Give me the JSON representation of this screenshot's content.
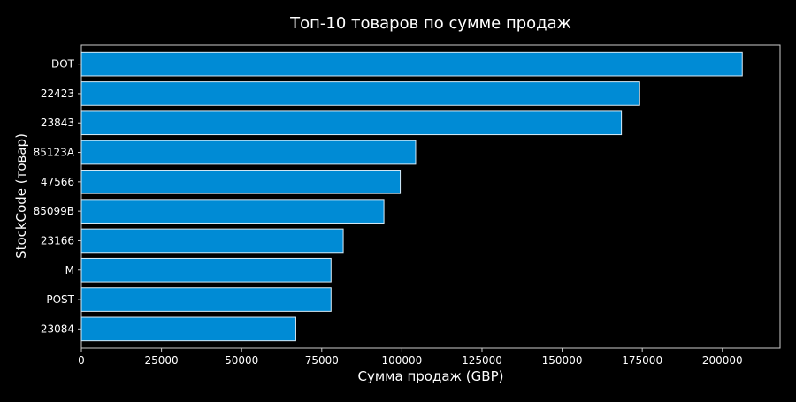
{
  "chart_data": {
    "type": "bar",
    "orientation": "horizontal",
    "title": "Топ-10 товаров по сумме продаж",
    "xlabel": "Сумма продаж (GBP)",
    "ylabel": "StockCode (товар)",
    "categories": [
      "DOT",
      "22423",
      "23843",
      "85123A",
      "47566",
      "85099B",
      "23166",
      "M",
      "POST",
      "23084"
    ],
    "values": [
      206200,
      174200,
      168500,
      104300,
      99500,
      94400,
      81700,
      77900,
      77900,
      66900
    ],
    "xlim": [
      0,
      218000
    ],
    "xticks": [
      0,
      25000,
      50000,
      75000,
      100000,
      125000,
      150000,
      175000,
      200000
    ],
    "xtick_labels": [
      "0",
      "25000",
      "50000",
      "75000",
      "100000",
      "125000",
      "150000",
      "175000",
      "200000"
    ],
    "grid": false,
    "legend": "none",
    "colors": {
      "background": "#000000",
      "bar_fill": "#008bd5",
      "bar_edge": "#d8ecf8",
      "axes": "#cccccc",
      "text": "#ffffff"
    }
  }
}
